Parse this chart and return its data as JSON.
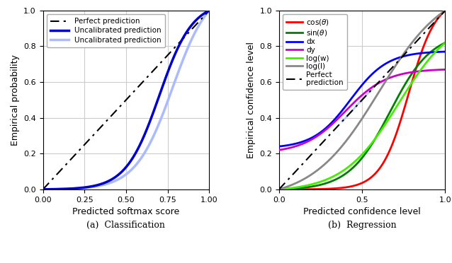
{
  "left_xlabel": "Predicted softmax score",
  "left_ylabel": "Empirical probability",
  "right_xlabel": "Predicted confidence level",
  "right_ylabel": "Empirical confidence level",
  "left_caption": "(a)  Classification",
  "right_caption": "(b)  Regression",
  "left_xlim": [
    0.0,
    1.0
  ],
  "left_ylim": [
    0.0,
    1.0
  ],
  "right_xlim": [
    0.0,
    1.0
  ],
  "right_ylim": [
    0.0,
    1.0
  ],
  "left_xticks": [
    0.0,
    0.25,
    0.5,
    0.75,
    1.0
  ],
  "left_yticks": [
    0.0,
    0.2,
    0.4,
    0.6,
    0.8,
    1.0
  ],
  "right_xticks": [
    0.0,
    0.5,
    1.0
  ],
  "right_yticks": [
    0.0,
    0.2,
    0.4,
    0.6,
    0.8,
    1.0
  ],
  "perfect_color": "black",
  "uncalibrated_color_1": "#0000cc",
  "uncalibrated_color_2": "#aabbff",
  "regression_colors": {
    "cos_theta": "#ff0000",
    "sin_theta": "#008000",
    "dx": "#0000ff",
    "dy": "#cc00cc",
    "log_w": "#44ee00",
    "log_l": "#888888"
  },
  "background_color": "white",
  "grid_color": "#cccccc"
}
